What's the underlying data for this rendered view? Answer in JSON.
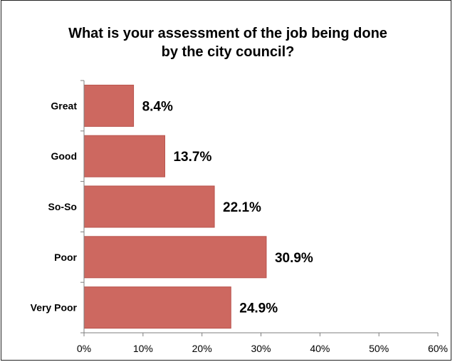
{
  "chart_data": {
    "type": "bar",
    "orientation": "horizontal",
    "title_lines": [
      "What is your assessment of the job being done",
      "by the city council?"
    ],
    "categories": [
      "Great",
      "Good",
      "So-So",
      "Poor",
      "Very Poor"
    ],
    "values": [
      8.4,
      13.7,
      22.1,
      30.9,
      24.9
    ],
    "data_labels": [
      "8.4%",
      "13.7%",
      "22.1%",
      "30.9%",
      "24.9%"
    ],
    "xlim": [
      0,
      60
    ],
    "x_ticks": [
      0,
      10,
      20,
      30,
      40,
      50,
      60
    ],
    "x_tick_labels": [
      "0%",
      "10%",
      "20%",
      "30%",
      "40%",
      "50%",
      "60%"
    ],
    "bar_color": "#cd6860",
    "bar_border_color": "#b9534c",
    "grid": false,
    "legend": "none"
  }
}
